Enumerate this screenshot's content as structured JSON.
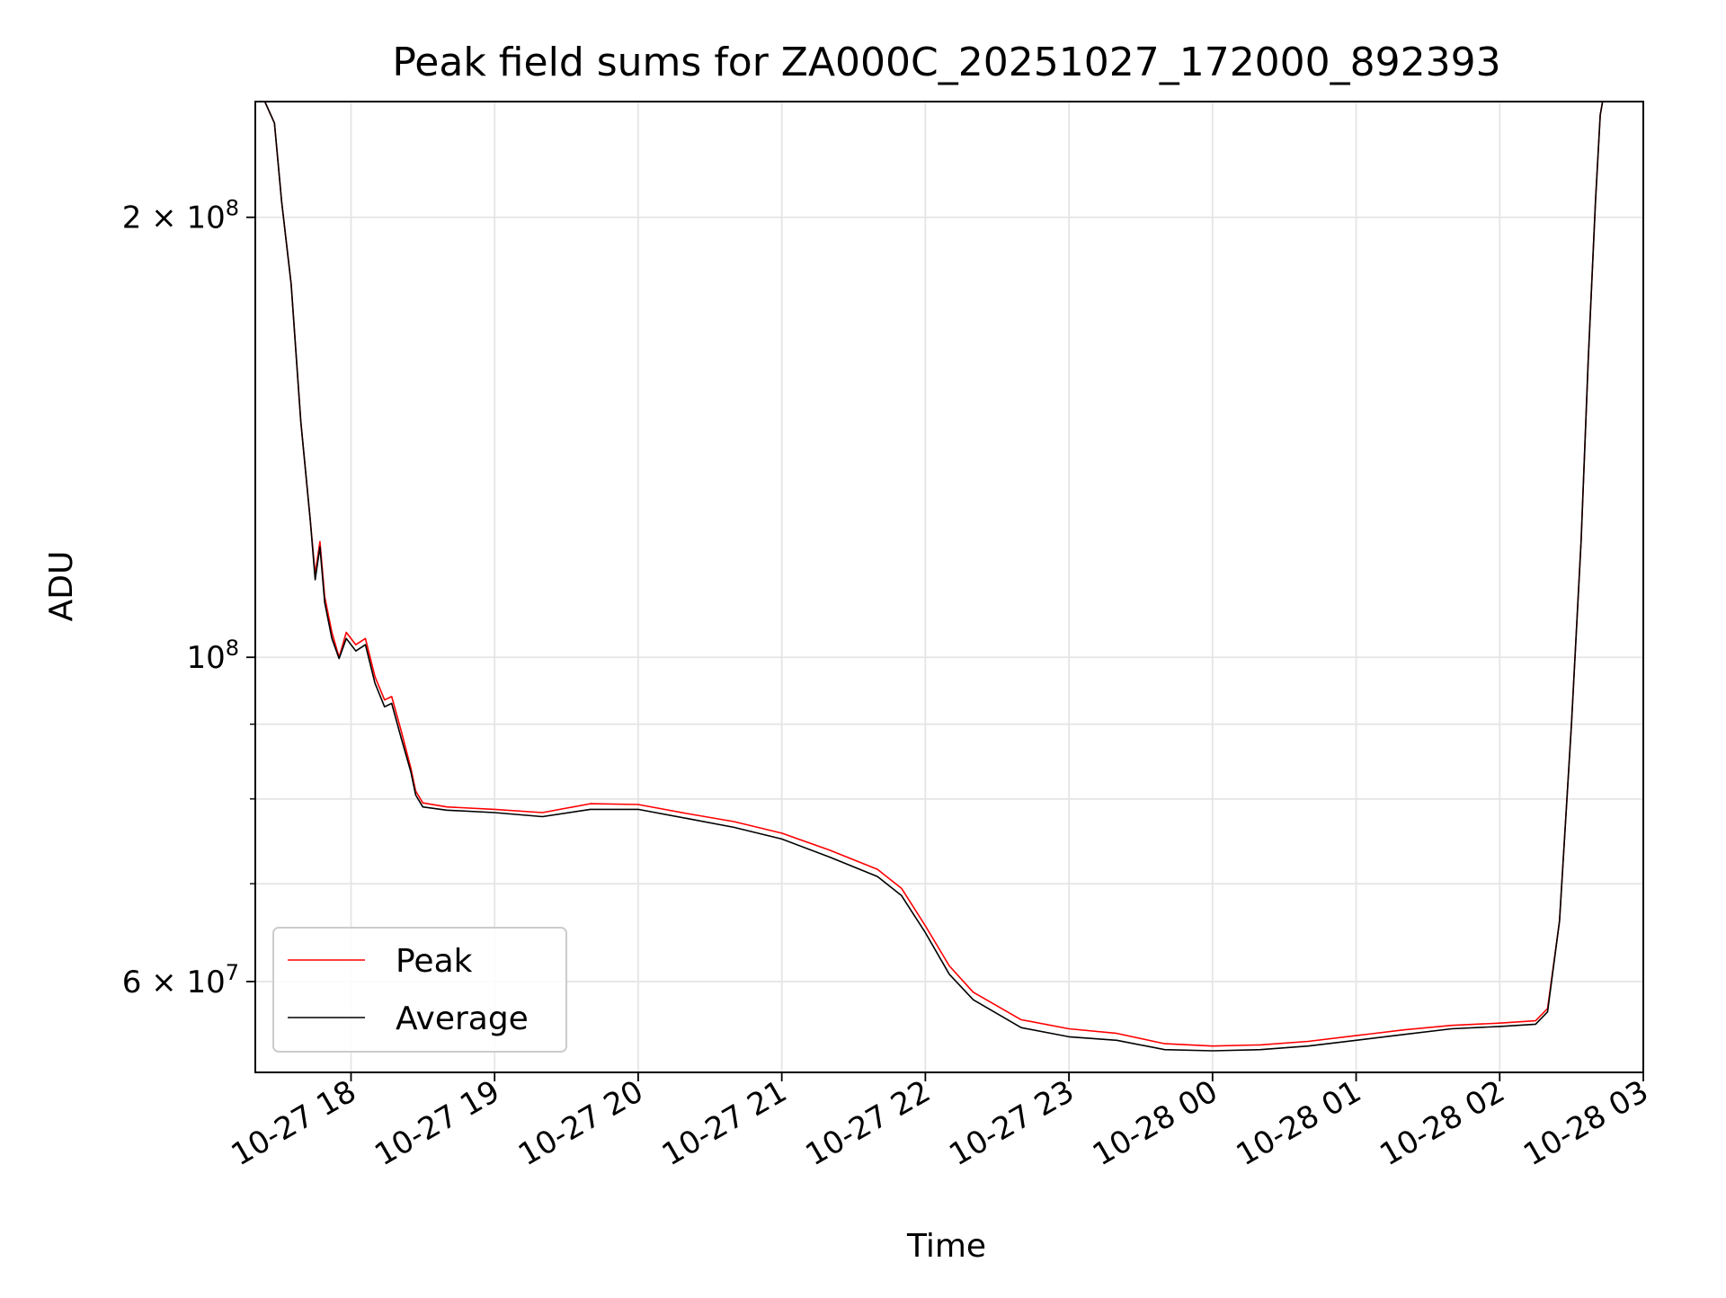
{
  "chart_data": {
    "type": "line",
    "title": "Peak field sums for ZA000C_20251027_172000_892393",
    "xlabel": "Time",
    "ylabel": "ADU",
    "x_axis": {
      "kind": "time",
      "range": [
        "2025-10-27 17:20",
        "2025-10-28 03:00"
      ],
      "tick_values": [
        "2025-10-27 18:00",
        "2025-10-27 19:00",
        "2025-10-27 20:00",
        "2025-10-27 21:00",
        "2025-10-27 22:00",
        "2025-10-27 23:00",
        "2025-10-28 00:00",
        "2025-10-28 01:00",
        "2025-10-28 02:00",
        "2025-10-28 03:00"
      ],
      "tick_labels": [
        "10-27 18",
        "10-27 19",
        "10-27 20",
        "10-27 21",
        "10-27 22",
        "10-27 23",
        "10-28 00",
        "10-28 01",
        "10-28 02",
        "10-28 03"
      ],
      "tick_label_rotation": 30
    },
    "y_axis": {
      "scale": "log",
      "range": [
        52000000,
        240000000
      ],
      "major_ticks": [
        {
          "value": 200000000,
          "mantissa": "2",
          "times": "×",
          "base": "10",
          "exp": "8"
        },
        {
          "value": 100000000,
          "mantissa": "",
          "times": "",
          "base": "10",
          "exp": "8"
        },
        {
          "value": 60000000,
          "mantissa": "6",
          "times": "×",
          "base": "10",
          "exp": "7"
        }
      ],
      "minor_ticks": [
        90000000,
        80000000,
        70000000
      ]
    },
    "grid": true,
    "legend_position": "lower-left",
    "series": [
      {
        "name": "Peak",
        "color": "#ff0000",
        "points": [
          [
            "2025-10-27 17:20",
            240000000
          ],
          [
            "2025-10-27 17:24",
            240000000
          ],
          [
            "2025-10-27 17:28",
            232000000
          ],
          [
            "2025-10-27 17:31",
            205000000
          ],
          [
            "2025-10-27 17:35",
            180000000
          ],
          [
            "2025-10-27 17:39",
            145000000
          ],
          [
            "2025-10-27 17:43",
            124000000
          ],
          [
            "2025-10-27 17:45",
            114000000
          ],
          [
            "2025-10-27 17:47",
            120000000
          ],
          [
            "2025-10-27 17:49",
            110000000
          ],
          [
            "2025-10-27 17:52",
            104000000
          ],
          [
            "2025-10-27 17:55",
            100000000
          ],
          [
            "2025-10-27 17:58",
            104000000
          ],
          [
            "2025-10-27 18:02",
            102000000
          ],
          [
            "2025-10-27 18:06",
            103000000
          ],
          [
            "2025-10-27 18:10",
            97000000
          ],
          [
            "2025-10-27 18:14",
            93500000
          ],
          [
            "2025-10-27 18:17",
            94000000
          ],
          [
            "2025-10-27 18:21",
            89000000
          ],
          [
            "2025-10-27 18:25",
            84000000
          ],
          [
            "2025-10-27 18:27",
            81000000
          ],
          [
            "2025-10-27 18:30",
            79500000
          ],
          [
            "2025-10-27 18:40",
            79000000
          ],
          [
            "2025-10-27 19:00",
            78700000
          ],
          [
            "2025-10-27 19:20",
            78300000
          ],
          [
            "2025-10-27 19:40",
            79400000
          ],
          [
            "2025-10-27 20:00",
            79300000
          ],
          [
            "2025-10-27 20:20",
            78200000
          ],
          [
            "2025-10-27 20:40",
            77200000
          ],
          [
            "2025-10-27 21:00",
            75800000
          ],
          [
            "2025-10-27 21:20",
            73800000
          ],
          [
            "2025-10-27 21:40",
            71600000
          ],
          [
            "2025-10-27 21:50",
            69500000
          ],
          [
            "2025-10-27 22:00",
            65500000
          ],
          [
            "2025-10-27 22:10",
            61500000
          ],
          [
            "2025-10-27 22:20",
            59000000
          ],
          [
            "2025-10-27 22:40",
            56500000
          ],
          [
            "2025-10-27 23:00",
            55700000
          ],
          [
            "2025-10-27 23:20",
            55300000
          ],
          [
            "2025-10-27 23:40",
            54400000
          ],
          [
            "2025-10-28 00:00",
            54200000
          ],
          [
            "2025-10-28 00:20",
            54300000
          ],
          [
            "2025-10-28 00:40",
            54600000
          ],
          [
            "2025-10-28 01:00",
            55100000
          ],
          [
            "2025-10-28 01:20",
            55600000
          ],
          [
            "2025-10-28 01:40",
            56000000
          ],
          [
            "2025-10-28 02:00",
            56200000
          ],
          [
            "2025-10-28 02:15",
            56400000
          ],
          [
            "2025-10-28 02:20",
            57500000
          ],
          [
            "2025-10-28 02:25",
            66000000
          ],
          [
            "2025-10-28 02:30",
            90000000
          ],
          [
            "2025-10-28 02:34",
            120000000
          ],
          [
            "2025-10-28 02:37",
            160000000
          ],
          [
            "2025-10-28 02:40",
            205000000
          ],
          [
            "2025-10-28 02:42",
            235000000
          ],
          [
            "2025-10-28 02:43",
            240000000
          ],
          [
            "2025-10-28 03:00",
            240000000
          ]
        ]
      },
      {
        "name": "Average",
        "color": "#000000",
        "points": [
          [
            "2025-10-27 17:20",
            240000000
          ],
          [
            "2025-10-27 17:24",
            240000000
          ],
          [
            "2025-10-27 17:28",
            232000000
          ],
          [
            "2025-10-27 17:31",
            205000000
          ],
          [
            "2025-10-27 17:35",
            180000000
          ],
          [
            "2025-10-27 17:39",
            145000000
          ],
          [
            "2025-10-27 17:43",
            124000000
          ],
          [
            "2025-10-27 17:45",
            113000000
          ],
          [
            "2025-10-27 17:47",
            119000000
          ],
          [
            "2025-10-27 17:49",
            109000000
          ],
          [
            "2025-10-27 17:52",
            103000000
          ],
          [
            "2025-10-27 17:55",
            99800000
          ],
          [
            "2025-10-27 17:58",
            103000000
          ],
          [
            "2025-10-27 18:02",
            101000000
          ],
          [
            "2025-10-27 18:06",
            102000000
          ],
          [
            "2025-10-27 18:10",
            96000000
          ],
          [
            "2025-10-27 18:14",
            92500000
          ],
          [
            "2025-10-27 18:17",
            93000000
          ],
          [
            "2025-10-27 18:21",
            88000000
          ],
          [
            "2025-10-27 18:25",
            83500000
          ],
          [
            "2025-10-27 18:27",
            80500000
          ],
          [
            "2025-10-27 18:30",
            79000000
          ],
          [
            "2025-10-27 18:40",
            78600000
          ],
          [
            "2025-10-27 19:00",
            78300000
          ],
          [
            "2025-10-27 19:20",
            77800000
          ],
          [
            "2025-10-27 19:40",
            78700000
          ],
          [
            "2025-10-27 20:00",
            78700000
          ],
          [
            "2025-10-27 20:20",
            77600000
          ],
          [
            "2025-10-27 20:40",
            76500000
          ],
          [
            "2025-10-27 21:00",
            75100000
          ],
          [
            "2025-10-27 21:20",
            73000000
          ],
          [
            "2025-10-27 21:40",
            70800000
          ],
          [
            "2025-10-27 21:50",
            68700000
          ],
          [
            "2025-10-27 22:00",
            64800000
          ],
          [
            "2025-10-27 22:10",
            60700000
          ],
          [
            "2025-10-27 22:20",
            58300000
          ],
          [
            "2025-10-27 22:40",
            55800000
          ],
          [
            "2025-10-27 23:00",
            55000000
          ],
          [
            "2025-10-27 23:20",
            54700000
          ],
          [
            "2025-10-27 23:40",
            53900000
          ],
          [
            "2025-10-28 00:00",
            53800000
          ],
          [
            "2025-10-28 00:20",
            53900000
          ],
          [
            "2025-10-28 00:40",
            54200000
          ],
          [
            "2025-10-28 01:00",
            54700000
          ],
          [
            "2025-10-28 01:20",
            55200000
          ],
          [
            "2025-10-28 01:40",
            55700000
          ],
          [
            "2025-10-28 02:00",
            55900000
          ],
          [
            "2025-10-28 02:15",
            56100000
          ],
          [
            "2025-10-28 02:20",
            57200000
          ],
          [
            "2025-10-28 02:25",
            66000000
          ],
          [
            "2025-10-28 02:30",
            90000000
          ],
          [
            "2025-10-28 02:34",
            120000000
          ],
          [
            "2025-10-28 02:37",
            160000000
          ],
          [
            "2025-10-28 02:40",
            205000000
          ],
          [
            "2025-10-28 02:42",
            235000000
          ],
          [
            "2025-10-28 02:43",
            240000000
          ],
          [
            "2025-10-28 03:00",
            240000000
          ]
        ]
      }
    ]
  }
}
